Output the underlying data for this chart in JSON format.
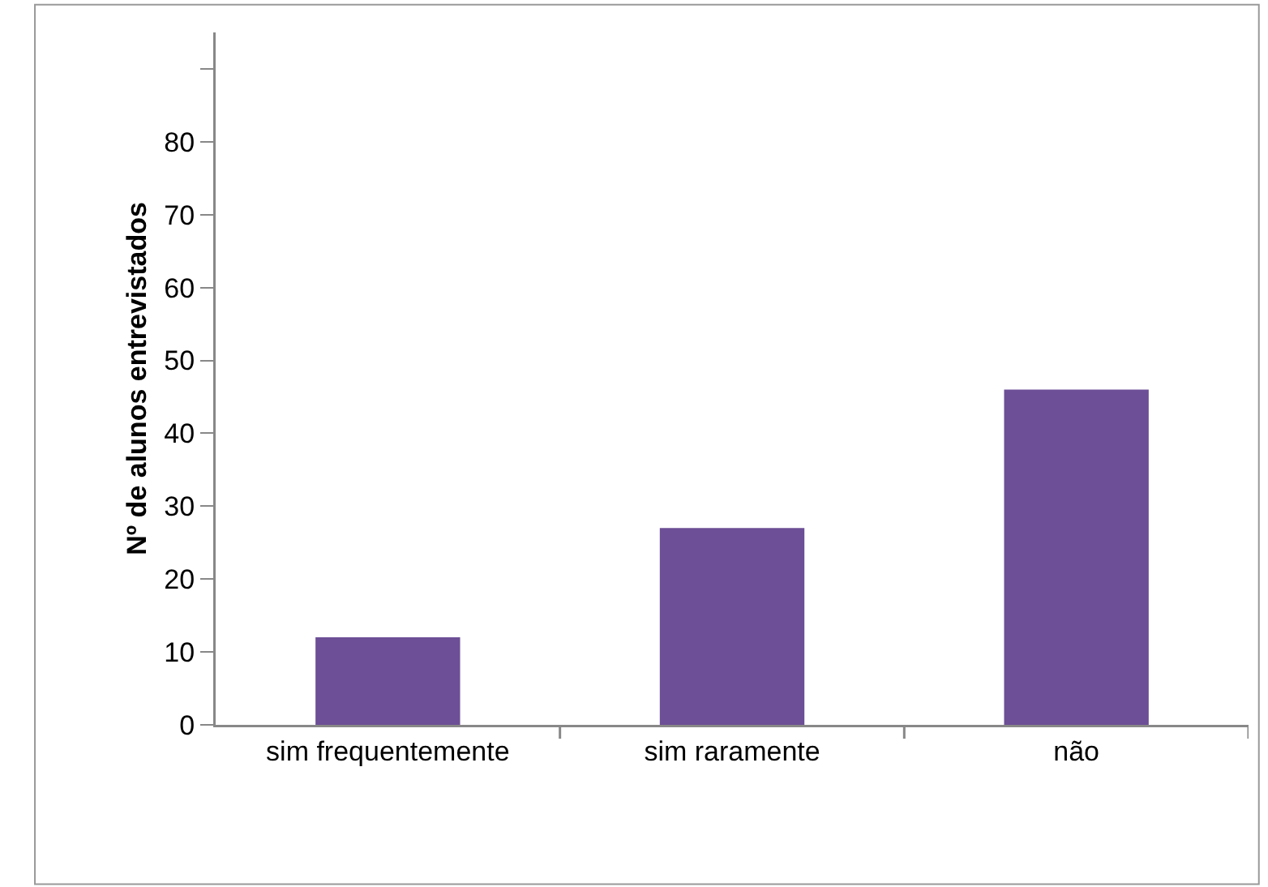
{
  "chart_data": {
    "type": "bar",
    "ylabel": "Nº de alunos entrevistados",
    "categories": [
      "sim frequentemente",
      "sim raramente",
      "não"
    ],
    "values": [
      12,
      27,
      46
    ],
    "color": "#6c4f96",
    "ylim": [
      0,
      95
    ],
    "yticks": [
      0,
      10,
      20,
      30,
      40,
      50,
      60,
      70,
      80,
      {
        "value": 90,
        "label": null
      }
    ],
    "grid": false,
    "legend": false
  }
}
